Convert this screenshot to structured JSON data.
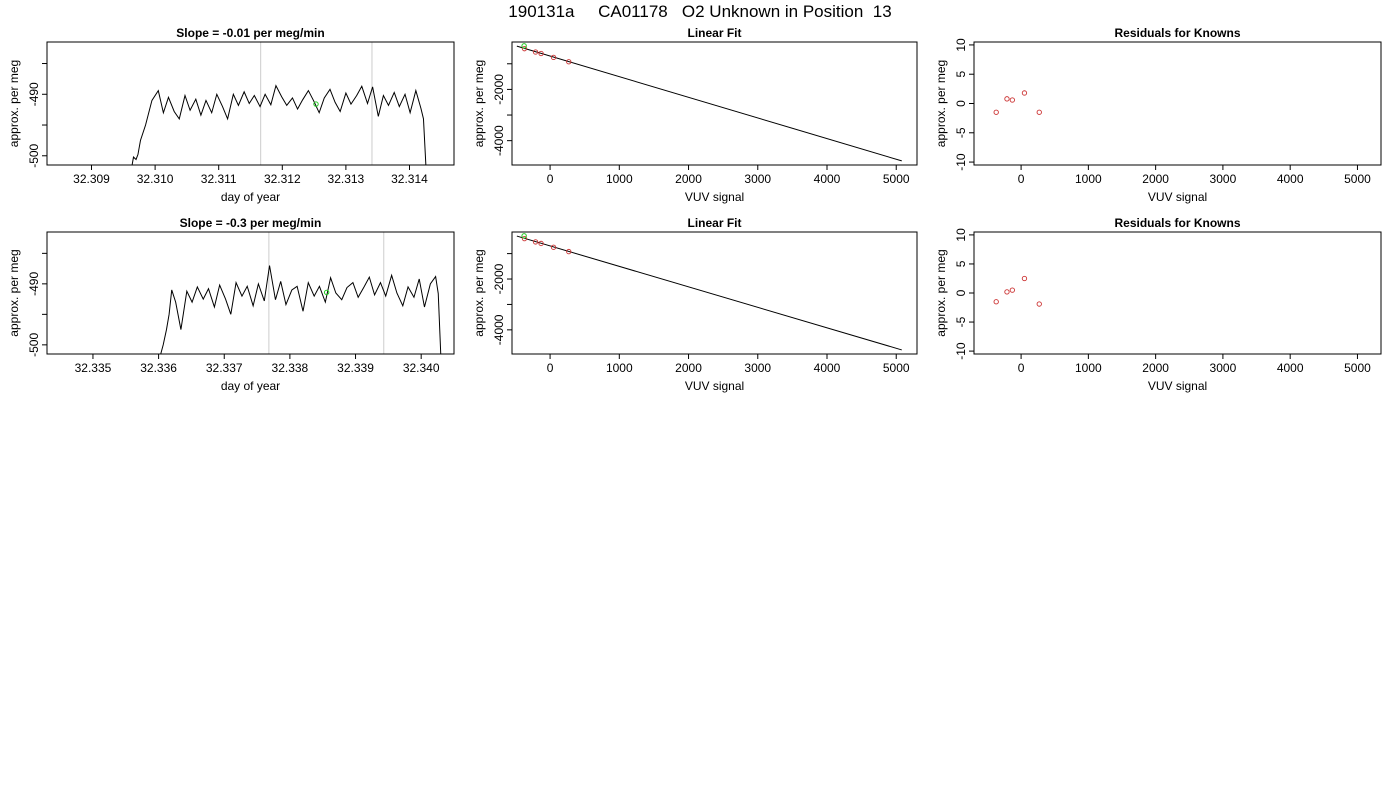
{
  "figure_title": "190131a     CA01178   O2 Unknown in Position  13",
  "chart_data": [
    {
      "type": "line",
      "title": "Slope =  -0.01  per meg/min",
      "xlabel": "day of year",
      "ylabel": "approx. per meg",
      "xlim": [
        32.3083,
        32.3147
      ],
      "ylim": [
        -501.5,
        -481.5
      ],
      "x_ticks": [
        32.309,
        32.31,
        32.311,
        32.312,
        32.313,
        32.314
      ],
      "x_tick_labels": [
        "32.309",
        "32.310",
        "32.311",
        "32.312",
        "32.313",
        "32.314"
      ],
      "y_ticks": [
        -500,
        -495,
        -490,
        -485
      ],
      "y_tick_labels": [
        "-500",
        "",
        "-490",
        ""
      ],
      "vlines": [
        32.31166,
        32.31341
      ],
      "series": [
        {
          "color": "#000000",
          "x": [
            32.30963,
            32.30966,
            32.3097,
            32.30973,
            32.30977,
            32.30985,
            32.30995,
            32.31005,
            32.31013,
            32.31021,
            32.3103,
            32.31038,
            32.31047,
            32.31055,
            32.31064,
            32.31072,
            32.3108,
            32.31089,
            32.31097,
            32.31106,
            32.31114,
            32.31123,
            32.31131,
            32.3114,
            32.31148,
            32.31156,
            32.31165,
            32.31173,
            32.31182,
            32.3119,
            32.31199,
            32.31207,
            32.31216,
            32.31224,
            32.31232,
            32.31241,
            32.31249,
            32.31258,
            32.31266,
            32.31275,
            32.31283,
            32.31291,
            32.313,
            32.31308,
            32.31317,
            32.31325,
            32.31334,
            32.31342,
            32.31351,
            32.31359,
            32.31367,
            32.31376,
            32.31384,
            32.31393,
            32.31401,
            32.3141,
            32.31418,
            32.31422,
            32.31426
          ],
          "y": [
            -502.0,
            -500.2,
            -500.6,
            -499.8,
            -497.5,
            -495.0,
            -491.0,
            -489.4,
            -493.0,
            -490.5,
            -492.8,
            -494.0,
            -490.2,
            -492.6,
            -490.8,
            -493.4,
            -491.0,
            -493.0,
            -490.0,
            -492.0,
            -494.0,
            -490.0,
            -491.8,
            -489.6,
            -491.5,
            -490.2,
            -492.0,
            -490.0,
            -491.7,
            -488.6,
            -490.4,
            -491.8,
            -490.6,
            -492.4,
            -490.9,
            -489.4,
            -491.0,
            -493.0,
            -490.6,
            -489.2,
            -491.3,
            -492.8,
            -489.8,
            -491.6,
            -490.2,
            -488.7,
            -491.5,
            -488.8,
            -493.6,
            -490.2,
            -491.8,
            -489.7,
            -492.0,
            -490.0,
            -493.0,
            -489.4,
            -492.3,
            -494.0,
            -502.0
          ]
        }
      ],
      "highlight_points": [
        {
          "x": 32.31253,
          "y": -491.6,
          "color": "#22cc22"
        }
      ]
    },
    {
      "type": "scatter",
      "title": "Linear Fit",
      "xlabel": "VUV signal",
      "ylabel": "approx. per meg",
      "xlim": [
        -550,
        5300
      ],
      "ylim": [
        -4950,
        -150
      ],
      "x_ticks": [
        0,
        1000,
        2000,
        3000,
        4000,
        5000
      ],
      "x_tick_labels": [
        "0",
        "1000",
        "2000",
        "3000",
        "4000",
        "5000"
      ],
      "y_ticks": [
        -4000,
        -3000,
        -2000,
        -1000
      ],
      "y_tick_labels": [
        "-4000",
        "",
        "-2000",
        ""
      ],
      "fit_line": {
        "x": [
          -480,
          5080
        ],
        "y": [
          -310,
          -4790
        ],
        "color": "#000000"
      },
      "points": {
        "x": [
          -370,
          -210,
          -130,
          50,
          270
        ],
        "y": [
          -410,
          -540,
          -600,
          -750,
          -920
        ],
        "color": "#cc3333"
      },
      "highlight_points": [
        {
          "x": -375,
          "y": -300,
          "color": "#22cc22"
        }
      ]
    },
    {
      "type": "scatter",
      "title": "Residuals for Knowns",
      "xlabel": "VUV signal",
      "ylabel": "approx. per meg",
      "xlim": [
        -700,
        5350
      ],
      "ylim": [
        -10.5,
        10.5
      ],
      "x_ticks": [
        0,
        1000,
        2000,
        3000,
        4000,
        5000
      ],
      "x_tick_labels": [
        "0",
        "1000",
        "2000",
        "3000",
        "4000",
        "5000"
      ],
      "y_ticks": [
        -10,
        -5,
        0,
        5,
        10
      ],
      "y_tick_labels": [
        "-10",
        "-5",
        "0",
        "5",
        "10"
      ],
      "points": {
        "x": [
          -370,
          -210,
          -130,
          50,
          270
        ],
        "y": [
          -1.5,
          0.8,
          0.6,
          1.8,
          -1.5
        ],
        "color": "#cc3333"
      }
    },
    {
      "type": "line",
      "title": "Slope =  -0.3  per meg/min",
      "xlabel": "day of year",
      "ylabel": "approx. per meg",
      "xlim": [
        32.3343,
        32.3405
      ],
      "ylim": [
        -501.5,
        -481.5
      ],
      "x_ticks": [
        32.335,
        32.336,
        32.337,
        32.338,
        32.339,
        32.34
      ],
      "x_tick_labels": [
        "32.335",
        "32.336",
        "32.337",
        "32.338",
        "32.339",
        "32.340"
      ],
      "y_ticks": [
        -500,
        -495,
        -490,
        -485
      ],
      "y_tick_labels": [
        "-500",
        "",
        "-490",
        ""
      ],
      "vlines": [
        32.33768,
        32.33943
      ],
      "series": [
        {
          "color": "#000000",
          "x": [
            32.33602,
            32.33607,
            32.33612,
            32.33616,
            32.3362,
            32.33626,
            32.33634,
            32.33643,
            32.33651,
            32.33659,
            32.33668,
            32.33676,
            32.33685,
            32.33693,
            32.33702,
            32.3371,
            32.33718,
            32.33727,
            32.33735,
            32.33744,
            32.33752,
            32.33761,
            32.33769,
            32.33778,
            32.33786,
            32.33794,
            32.33803,
            32.33811,
            32.3382,
            32.33828,
            32.33837,
            32.33845,
            32.33854,
            32.33862,
            32.3387,
            32.33879,
            32.33887,
            32.33896,
            32.33904,
            32.33913,
            32.33921,
            32.33929,
            32.33938,
            32.33946,
            32.33955,
            32.33963,
            32.33972,
            32.3398,
            32.33989,
            32.33997,
            32.34005,
            32.34014,
            32.34022,
            32.34026,
            32.3403
          ],
          "y": [
            -502.0,
            -500.0,
            -497.5,
            -495.0,
            -491.0,
            -493.0,
            -497.5,
            -491.2,
            -493.0,
            -490.5,
            -492.5,
            -490.8,
            -493.8,
            -490.2,
            -492.5,
            -495.0,
            -489.8,
            -492.0,
            -490.4,
            -493.6,
            -490.0,
            -492.8,
            -487.0,
            -492.6,
            -489.6,
            -493.4,
            -491.0,
            -490.4,
            -494.5,
            -489.8,
            -492.0,
            -490.4,
            -493.0,
            -489.0,
            -491.5,
            -492.6,
            -490.6,
            -489.8,
            -492.2,
            -490.5,
            -488.9,
            -491.8,
            -489.8,
            -492.0,
            -488.6,
            -491.5,
            -493.6,
            -490.5,
            -492.2,
            -489.2,
            -493.8,
            -490.0,
            -488.8,
            -491.6,
            -502.0
          ]
        }
      ],
      "highlight_points": [
        {
          "x": 32.33856,
          "y": -491.4,
          "color": "#22cc22"
        }
      ]
    },
    {
      "type": "scatter",
      "title": "Linear Fit",
      "xlabel": "VUV signal",
      "ylabel": "approx. per meg",
      "xlim": [
        -550,
        5300
      ],
      "ylim": [
        -4950,
        -150
      ],
      "x_ticks": [
        0,
        1000,
        2000,
        3000,
        4000,
        5000
      ],
      "x_tick_labels": [
        "0",
        "1000",
        "2000",
        "3000",
        "4000",
        "5000"
      ],
      "y_ticks": [
        -4000,
        -3000,
        -2000,
        -1000
      ],
      "y_tick_labels": [
        "-4000",
        "",
        "-2000",
        ""
      ],
      "fit_line": {
        "x": [
          -480,
          5080
        ],
        "y": [
          -310,
          -4790
        ],
        "color": "#000000"
      },
      "points": {
        "x": [
          -370,
          -210,
          -130,
          50,
          270
        ],
        "y": [
          -410,
          -540,
          -600,
          -750,
          -920
        ],
        "color": "#cc3333"
      },
      "highlight_points": [
        {
          "x": -375,
          "y": -300,
          "color": "#22cc22"
        }
      ]
    },
    {
      "type": "scatter",
      "title": "Residuals for Knowns",
      "xlabel": "VUV signal",
      "ylabel": "approx. per meg",
      "xlim": [
        -700,
        5350
      ],
      "ylim": [
        -10.5,
        10.5
      ],
      "x_ticks": [
        0,
        1000,
        2000,
        3000,
        4000,
        5000
      ],
      "x_tick_labels": [
        "0",
        "1000",
        "2000",
        "3000",
        "4000",
        "5000"
      ],
      "y_ticks": [
        -10,
        -5,
        0,
        5,
        10
      ],
      "y_tick_labels": [
        "-10",
        "-5",
        "0",
        "5",
        "10"
      ],
      "points": {
        "x": [
          -370,
          -210,
          -130,
          50,
          270
        ],
        "y": [
          -1.5,
          0.2,
          0.5,
          2.5,
          -1.9
        ],
        "color": "#cc3333"
      }
    }
  ]
}
